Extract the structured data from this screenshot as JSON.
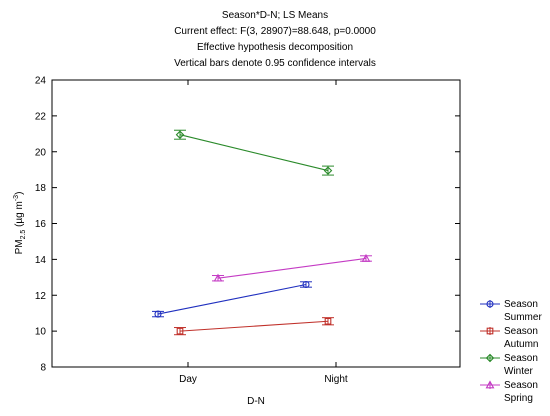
{
  "header": {
    "line1": "Season*D-N; LS Means",
    "line2": "Current effect: F(3, 28907)=88.648, p=0.0000",
    "line3": "Effective hypothesis decomposition",
    "line4": "Vertical bars denote 0.95 confidence intervals"
  },
  "chart_data": {
    "type": "line",
    "categories": [
      "Day",
      "Night"
    ],
    "xlabel": "D-N",
    "ylabel": "PM2.5 (µg m-3)",
    "ylim": [
      8,
      24
    ],
    "yticks": [
      8,
      10,
      12,
      14,
      16,
      18,
      20,
      22,
      24
    ],
    "grid": false,
    "legend_position": "bottom-right",
    "series": [
      {
        "name": "Summer",
        "legend_prefix": "Season",
        "color": "#1f2fbf",
        "marker": "circle",
        "values": [
          10.95,
          12.6
        ],
        "ci": [
          [
            10.8,
            11.1
          ],
          [
            12.45,
            12.75
          ]
        ]
      },
      {
        "name": "Autumn",
        "legend_prefix": "Season",
        "color": "#c0302a",
        "marker": "square",
        "values": [
          10.0,
          10.55
        ],
        "ci": [
          [
            9.8,
            10.2
          ],
          [
            10.35,
            10.75
          ]
        ]
      },
      {
        "name": "Winter",
        "legend_prefix": "Season",
        "color": "#2a8a2a",
        "marker": "diamond",
        "values": [
          20.95,
          18.95
        ],
        "ci": [
          [
            20.7,
            21.2
          ],
          [
            18.7,
            19.2
          ]
        ]
      },
      {
        "name": "Spring",
        "legend_prefix": "Season",
        "color": "#c43bc4",
        "marker": "triangle",
        "values": [
          12.95,
          14.05
        ],
        "ci": [
          [
            12.8,
            13.1
          ],
          [
            13.9,
            14.2
          ]
        ]
      }
    ]
  }
}
